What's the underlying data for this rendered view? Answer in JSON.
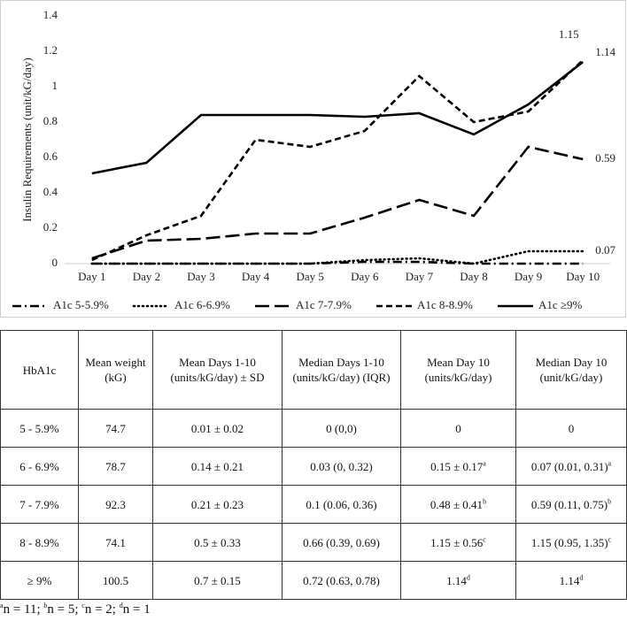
{
  "chart_data": {
    "type": "line",
    "y_label": "Insulin Requirements (unit/kG/day)",
    "categories": [
      "Day 1",
      "Day 2",
      "Day 3",
      "Day 4",
      "Day 5",
      "Day 6",
      "Day 7",
      "Day 8",
      "Day 9",
      "Day 10"
    ],
    "ylim": [
      0,
      1.4
    ],
    "yticks": [
      0,
      0.2,
      0.4,
      0.6,
      0.8,
      1,
      1.2,
      1.4
    ],
    "grid": false,
    "legend": "bottom",
    "series": [
      {
        "name": "A1c 5-5.9%",
        "color": "#000000",
        "dash": "dash-dot",
        "end_label": false,
        "values": [
          0,
          0,
          0,
          0,
          0,
          0.01,
          0.01,
          0,
          0,
          0
        ]
      },
      {
        "name": "A1c 6-6.9%",
        "color": "#000000",
        "dash": "dotted",
        "end_label": true,
        "values": [
          0,
          0,
          0,
          0,
          0,
          0.02,
          0.03,
          0,
          0.07,
          0.07
        ]
      },
      {
        "name": "A1c 7-7.9%",
        "color": "#000000",
        "dash": "long-dash",
        "end_label": true,
        "values": [
          0.03,
          0.13,
          0.14,
          0.17,
          0.17,
          0.26,
          0.36,
          0.27,
          0.66,
          0.59
        ]
      },
      {
        "name": "A1c 8-8.9%",
        "color": "#000000",
        "dash": "dash",
        "end_label": true,
        "values": [
          0.02,
          0.16,
          0.27,
          0.7,
          0.66,
          0.75,
          1.06,
          0.8,
          0.86,
          1.15
        ]
      },
      {
        "name": "A1c ≥9%",
        "color": "#000000",
        "dash": "solid",
        "end_label": true,
        "values": [
          0.51,
          0.57,
          0.84,
          0.84,
          0.84,
          0.83,
          0.85,
          0.73,
          0.9,
          1.14
        ]
      }
    ]
  },
  "table": {
    "header": [
      "HbA1c",
      "Mean weight (kG)",
      "Mean Days 1-10 (units/kG/day) ± SD",
      "Median Days 1-10 (units/kG/day) (IQR)",
      "Mean Day 10 (units/kG/day)",
      "Median Day 10 (unit/kG/day)"
    ],
    "rows": [
      [
        {
          "text": "5 - 5.9%"
        },
        {
          "text": "74.7"
        },
        {
          "text": "0.01 ± 0.02"
        },
        {
          "text": "0 (0,0)"
        },
        {
          "text": "0"
        },
        {
          "text": "0"
        }
      ],
      [
        {
          "text": "6 - 6.9%"
        },
        {
          "text": "78.7"
        },
        {
          "text": "0.14 ± 0.21"
        },
        {
          "text": "0.03 (0, 0.32)"
        },
        {
          "text": "0.15 ± 0.17",
          "sup": "a"
        },
        {
          "text": "0.07 (0.01, 0.31)",
          "sup": "a"
        }
      ],
      [
        {
          "text": "7 - 7.9%"
        },
        {
          "text": "92.3"
        },
        {
          "text": "0.21 ± 0.23"
        },
        {
          "text": "0.1 (0.06, 0.36)"
        },
        {
          "text": "0.48 ± 0.41",
          "sup": "b"
        },
        {
          "text": "0.59 (0.11, 0.75)",
          "sup": "b"
        }
      ],
      [
        {
          "text": "8 - 8.9%"
        },
        {
          "text": "74.1"
        },
        {
          "text": "0.5 ± 0.33"
        },
        {
          "text": "0.66 (0.39, 0.69)"
        },
        {
          "text": "1.15 ± 0.56",
          "sup": "c"
        },
        {
          "text": "1.15 (0.95, 1.35)",
          "sup": "c"
        }
      ],
      [
        {
          "text": "≥ 9%"
        },
        {
          "text": "100.5"
        },
        {
          "text": "0.7 ± 0.15"
        },
        {
          "text": "0.72 (0.63, 0.78)"
        },
        {
          "text": "1.14",
          "sup": "d"
        },
        {
          "text": "1.14",
          "sup": "d"
        }
      ]
    ]
  },
  "footnote": [
    {
      "sup": "a",
      "text": "n = 11; "
    },
    {
      "sup": "b",
      "text": "n = 5; "
    },
    {
      "sup": "c",
      "text": "n = 2; "
    },
    {
      "sup": "d",
      "text": "n = 1"
    }
  ]
}
